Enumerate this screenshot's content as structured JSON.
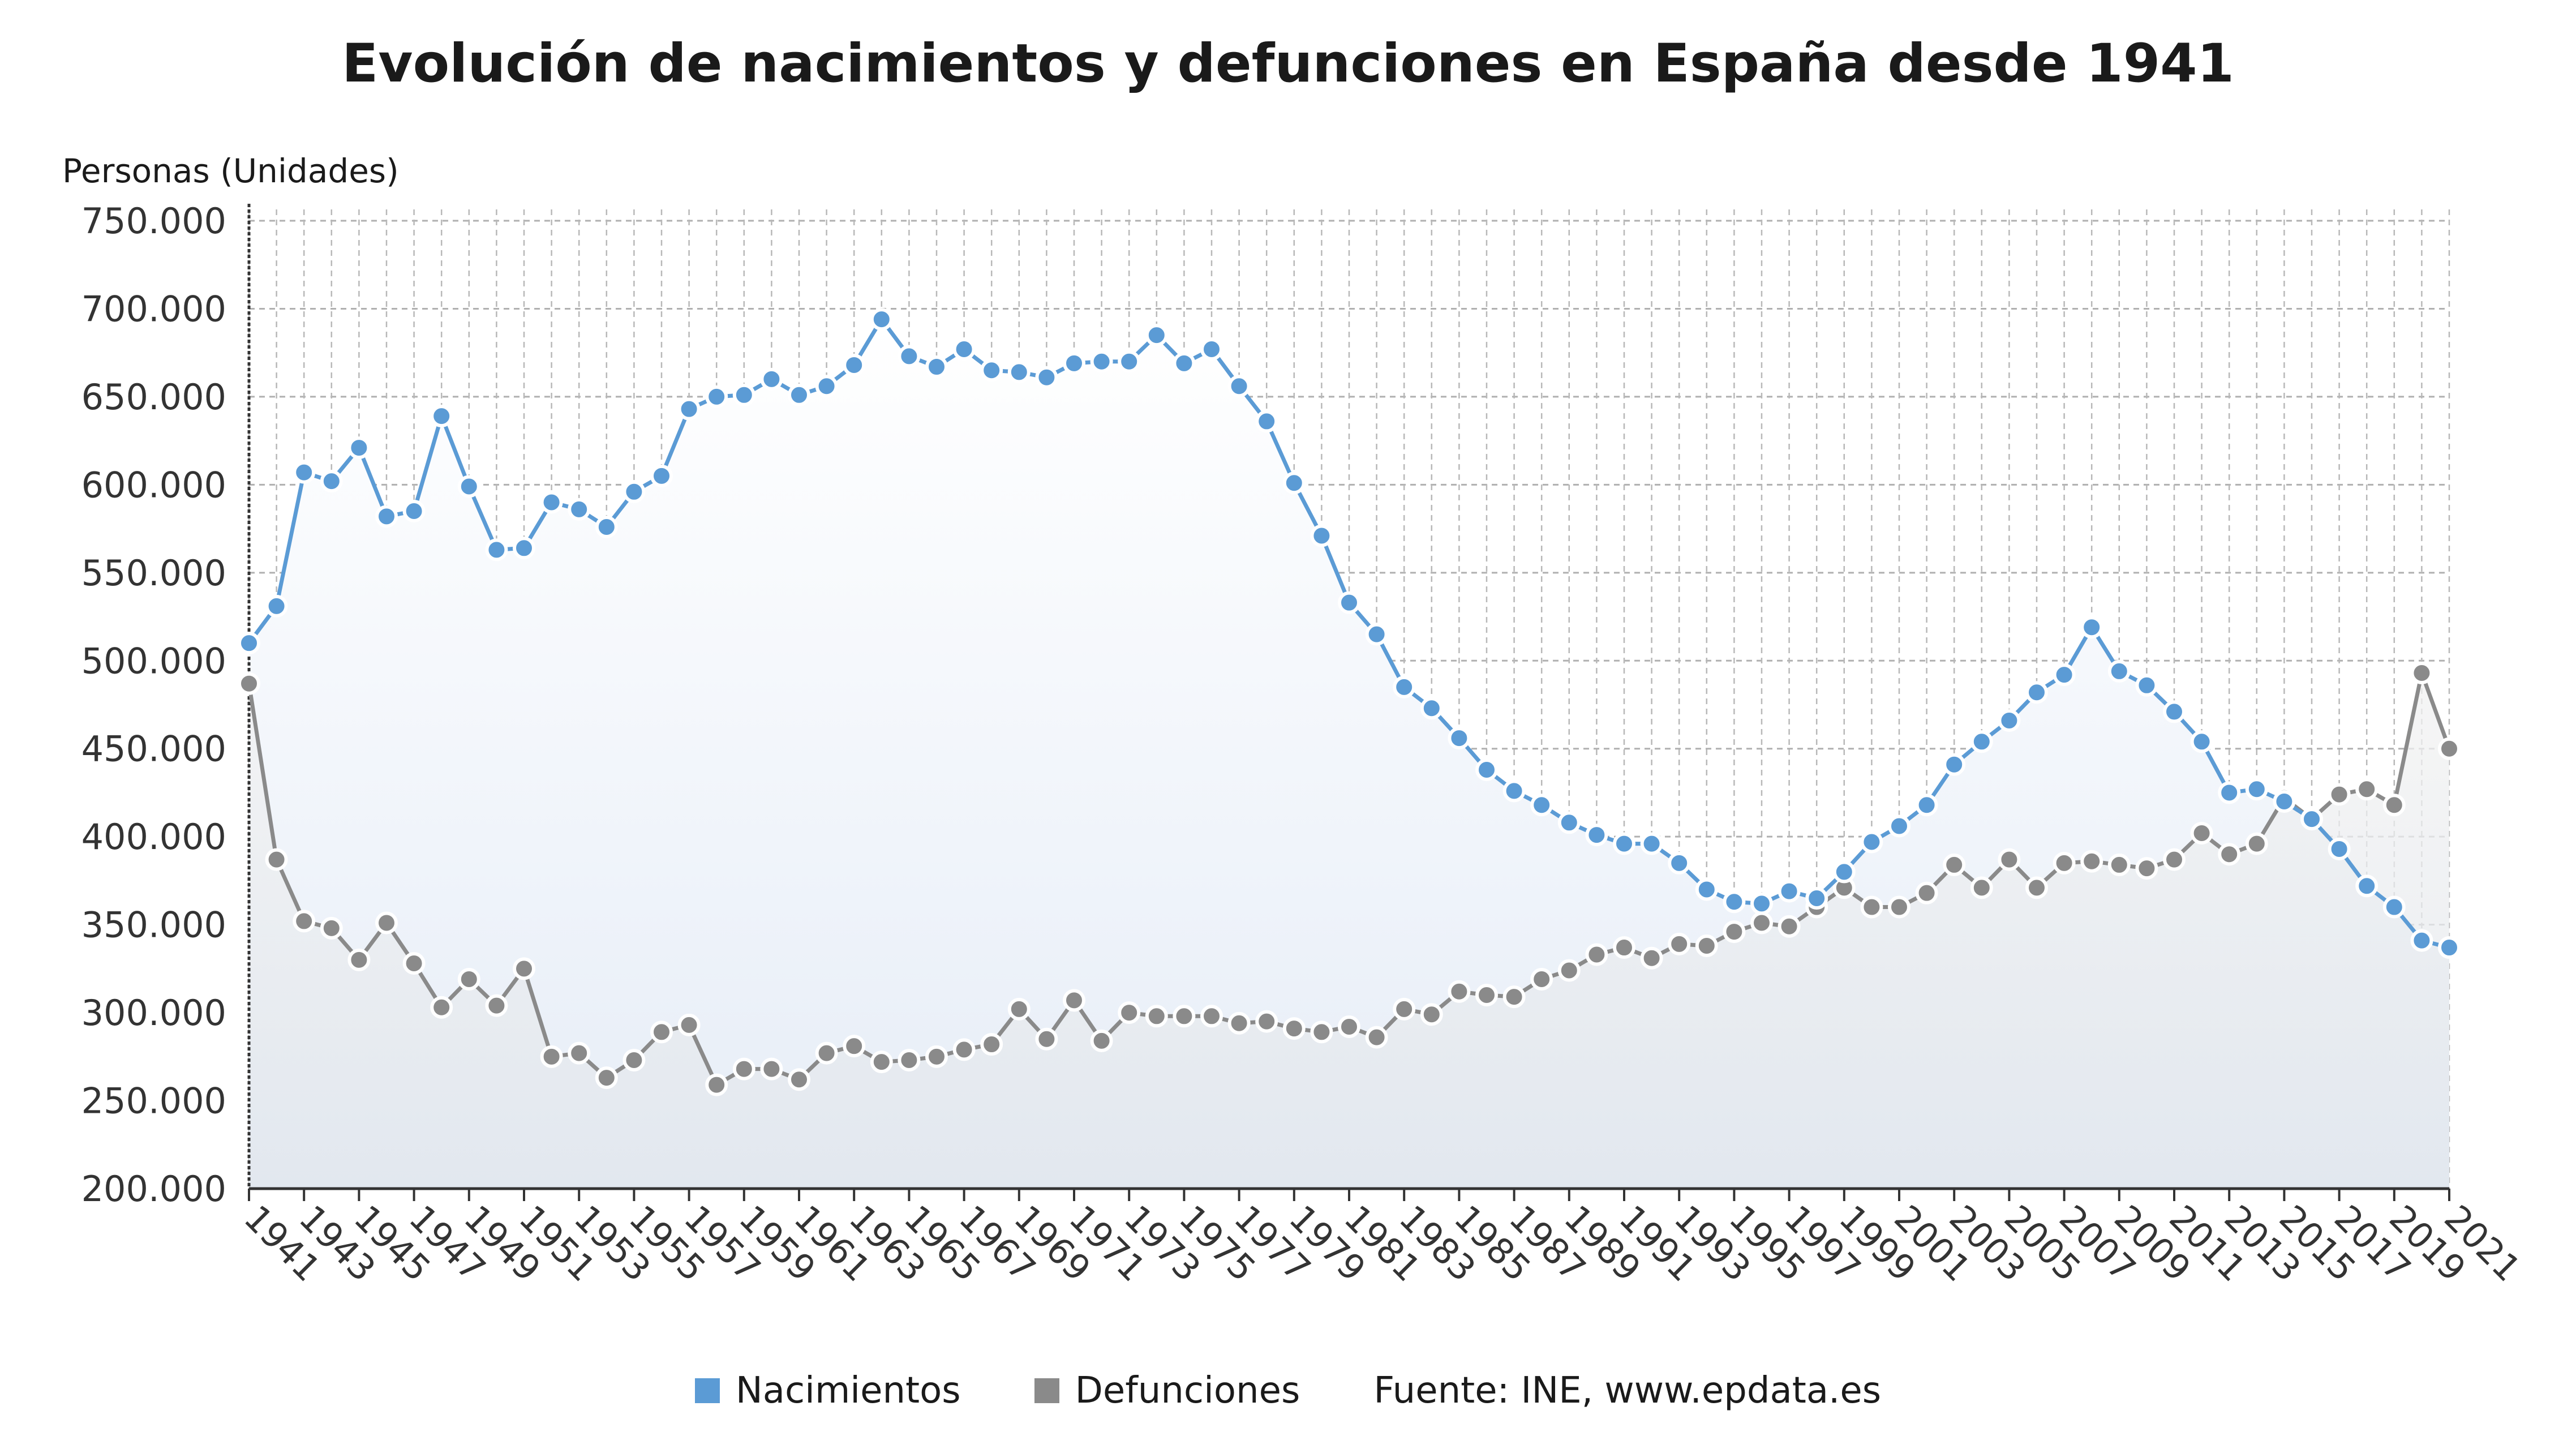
{
  "chart_data": {
    "type": "line",
    "title": "Evolución de nacimientos y defunciones en España desde 1941",
    "ylabel": "Personas (Unidades)",
    "ylim": [
      200000,
      750000
    ],
    "yticks": [
      "750.000",
      "700.000",
      "650.000",
      "600.000",
      "550.000",
      "500.000",
      "450.000",
      "400.000",
      "350.000",
      "300.000",
      "250.000",
      "200.000"
    ],
    "x": [
      1941,
      1942,
      1943,
      1944,
      1945,
      1946,
      1947,
      1948,
      1949,
      1950,
      1951,
      1952,
      1953,
      1954,
      1955,
      1956,
      1957,
      1958,
      1959,
      1960,
      1961,
      1962,
      1963,
      1964,
      1965,
      1966,
      1967,
      1968,
      1969,
      1970,
      1971,
      1972,
      1973,
      1974,
      1975,
      1976,
      1977,
      1978,
      1979,
      1980,
      1981,
      1982,
      1983,
      1984,
      1985,
      1986,
      1987,
      1988,
      1989,
      1990,
      1991,
      1992,
      1993,
      1994,
      1995,
      1996,
      1997,
      1998,
      1999,
      2000,
      2001,
      2002,
      2003,
      2004,
      2005,
      2006,
      2007,
      2008,
      2009,
      2010,
      2011,
      2012,
      2013,
      2014,
      2015,
      2016,
      2017,
      2018,
      2019,
      2020,
      2021
    ],
    "xtick_labels": [
      "1941",
      "1943",
      "1945",
      "1947",
      "1949",
      "1951",
      "1953",
      "1955",
      "1957",
      "1959",
      "1961",
      "1963",
      "1965",
      "1967",
      "1969",
      "1971",
      "1973",
      "1975",
      "1977",
      "1979",
      "1981",
      "1983",
      "1985",
      "1987",
      "1989",
      "1991",
      "1993",
      "1995",
      "1997",
      "1999",
      "2001",
      "2003",
      "2005",
      "2007",
      "2009",
      "2011",
      "2013",
      "2015",
      "2017",
      "2019",
      "2021"
    ],
    "grid": true,
    "legend_position": "bottom",
    "series": [
      {
        "name": "Nacimientos",
        "color": "#5b9bd5",
        "values": [
          510000,
          531000,
          607000,
          602000,
          621000,
          582000,
          585000,
          639000,
          599000,
          563000,
          564000,
          590000,
          586000,
          576000,
          596000,
          605000,
          643000,
          650000,
          651000,
          660000,
          651000,
          656000,
          668000,
          694000,
          673000,
          667000,
          677000,
          665000,
          664000,
          661000,
          669000,
          670000,
          670000,
          685000,
          669000,
          677000,
          656000,
          636000,
          601000,
          571000,
          533000,
          515000,
          485000,
          473000,
          456000,
          438000,
          426000,
          418000,
          408000,
          401000,
          396000,
          396000,
          385000,
          370000,
          363000,
          362000,
          369000,
          365000,
          380000,
          397000,
          406000,
          418000,
          441000,
          454000,
          466000,
          482000,
          492000,
          519000,
          494000,
          486000,
          471000,
          454000,
          425000,
          427000,
          420000,
          410000,
          393000,
          372000,
          360000,
          341000,
          337000
        ]
      },
      {
        "name": "Defunciones",
        "color": "#8a8a8a",
        "values": [
          487000,
          387000,
          352000,
          348000,
          330000,
          351000,
          328000,
          303000,
          319000,
          304000,
          325000,
          275000,
          277000,
          263000,
          273000,
          289000,
          293000,
          259000,
          268000,
          268000,
          262000,
          277000,
          281000,
          272000,
          273000,
          275000,
          279000,
          282000,
          302000,
          285000,
          307000,
          284000,
          300000,
          298000,
          298000,
          298000,
          294000,
          295000,
          291000,
          289000,
          292000,
          286000,
          302000,
          299000,
          312000,
          310000,
          309000,
          319000,
          324000,
          333000,
          337000,
          331000,
          339000,
          338000,
          346000,
          351000,
          349000,
          360000,
          371000,
          360000,
          360000,
          368000,
          384000,
          371000,
          387000,
          371000,
          385000,
          386000,
          384000,
          382000,
          387000,
          402000,
          390000,
          396000,
          422000,
          410000,
          424000,
          427000,
          418000,
          493000,
          450000
        ]
      }
    ]
  },
  "legend": {
    "items": [
      {
        "label": "Nacimientos",
        "color": "#5b9bd5"
      },
      {
        "label": "Defunciones",
        "color": "#8a8a8a"
      }
    ],
    "source": "Fuente: INE, www.epdata.es"
  }
}
